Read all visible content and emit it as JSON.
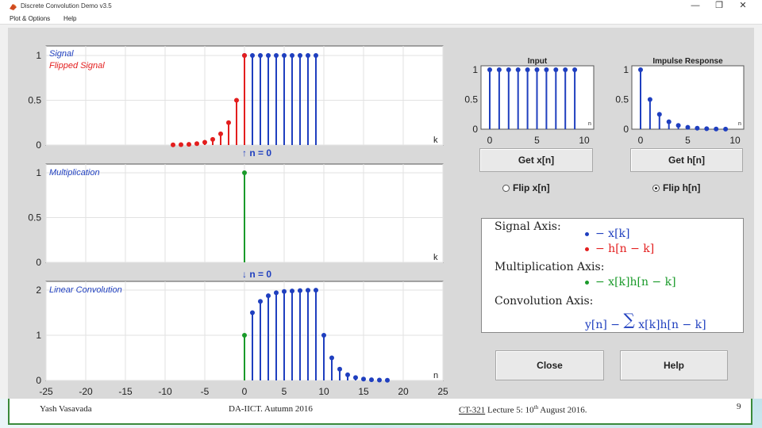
{
  "window": {
    "title": "Discrete Convolution Demo v3.5",
    "menu": [
      "Plot & Options",
      "Help"
    ],
    "controls": [
      "—",
      "❐",
      "✕"
    ]
  },
  "plots": {
    "signal": {
      "legend": [
        "Signal",
        "Flipped Signal"
      ],
      "axis_label": "k",
      "yticks": [
        "1",
        "0.5",
        "0"
      ]
    },
    "multiplication": {
      "legend": [
        "Multiplication"
      ],
      "axis_label": "k",
      "yticks": [
        "1",
        "0.5",
        "0"
      ]
    },
    "convolution": {
      "legend": [
        "Linear Convolution"
      ],
      "axis_label": "n",
      "yticks": [
        "2",
        "1",
        "0"
      ],
      "xticks": [
        "-25",
        "-20",
        "-15",
        "-10",
        "-5",
        "0",
        "5",
        "10",
        "15",
        "20",
        "25"
      ]
    },
    "input": {
      "title": "Input",
      "axis_label": "n",
      "yticks": [
        "1",
        "0.5",
        "0"
      ],
      "xticks": [
        "0",
        "5",
        "10"
      ]
    },
    "impulse": {
      "title": "Impulse Response",
      "axis_label": "n",
      "yticks": [
        "1",
        "0.5",
        "0"
      ],
      "xticks": [
        "0",
        "5",
        "10"
      ]
    }
  },
  "markers": {
    "upper": "↑ n = 0",
    "lower": "↓ n = 0"
  },
  "buttons": {
    "get_x": "Get x[n]",
    "get_h": "Get h[n]",
    "close": "Close",
    "help": "Help"
  },
  "radios": {
    "flip_x": {
      "label": "Flip x[n]",
      "checked": false
    },
    "flip_h": {
      "label": "Flip h[n]",
      "checked": true
    }
  },
  "legend_box": {
    "signal_axis": "Signal Axis:",
    "signal_x": "− x[k]",
    "signal_h": "− h[n − k]",
    "mult_axis": "Multiplication Axis:",
    "mult_term": "− x[k]h[n − k]",
    "conv_axis": "Convolution Axis:",
    "conv_lhs": "y[n] −",
    "conv_sum": "∑",
    "conv_rhs": "x[k]h[n − k]"
  },
  "footer": {
    "author": "Yash Vasavada",
    "course": "DA-IICT. Autumn 2016",
    "course_code": "CT-321",
    "lecture": "Lecture 5: 10",
    "lecture_sup": "th",
    "lecture_date": "August 2016.",
    "page": "9"
  },
  "colors": {
    "blue": "#1f3fbf",
    "red": "#e31e1e",
    "green": "#1a9a2a",
    "footer_border": "#3a8a3a"
  },
  "chart_data": [
    {
      "type": "stem",
      "name": "signal-axis",
      "x_range": [
        -25,
        25
      ],
      "ylim": [
        0,
        1.1
      ],
      "series": [
        {
          "name": "Signal",
          "color": "#1f3fbf",
          "x": [
            0,
            1,
            2,
            3,
            4,
            5,
            6,
            7,
            8,
            9
          ],
          "values": [
            1,
            1,
            1,
            1,
            1,
            1,
            1,
            1,
            1,
            1
          ]
        },
        {
          "name": "Flipped Signal",
          "color": "#e31e1e",
          "x": [
            -9,
            -8,
            -7,
            -6,
            -5,
            -4,
            -3,
            -2,
            -1,
            0
          ],
          "values": [
            0.002,
            0.004,
            0.008,
            0.016,
            0.031,
            0.063,
            0.125,
            0.25,
            0.5,
            1
          ]
        }
      ]
    },
    {
      "type": "stem",
      "name": "multiplication-axis",
      "x_range": [
        -25,
        25
      ],
      "ylim": [
        0,
        1.1
      ],
      "series": [
        {
          "name": "Multiplication",
          "color": "#1a9a2a",
          "x": [
            0
          ],
          "values": [
            1
          ]
        }
      ]
    },
    {
      "type": "stem",
      "name": "convolution-axis",
      "x_range": [
        -25,
        25
      ],
      "ylim": [
        0,
        2.1
      ],
      "series": [
        {
          "name": "Linear Convolution",
          "color": "#1f3fbf",
          "x": [
            1,
            2,
            3,
            4,
            5,
            6,
            7,
            8,
            9,
            10,
            11,
            12,
            13,
            14,
            15,
            16,
            17,
            18
          ],
          "values": [
            1.5,
            1.75,
            1.875,
            1.94,
            1.97,
            1.98,
            1.99,
            1.995,
            1.998,
            1.0,
            0.5,
            0.25,
            0.125,
            0.063,
            0.031,
            0.016,
            0.008,
            0.004
          ]
        },
        {
          "name": "current",
          "color": "#1a9a2a",
          "x": [
            0
          ],
          "values": [
            1
          ]
        }
      ]
    },
    {
      "type": "stem",
      "name": "input",
      "x_range": [
        -1,
        10.5
      ],
      "ylim": [
        0,
        1.1
      ],
      "series": [
        {
          "name": "x[n]",
          "color": "#1f3fbf",
          "x": [
            0,
            1,
            2,
            3,
            4,
            5,
            6,
            7,
            8,
            9
          ],
          "values": [
            1,
            1,
            1,
            1,
            1,
            1,
            1,
            1,
            1,
            1
          ]
        }
      ]
    },
    {
      "type": "stem",
      "name": "impulse-response",
      "x_range": [
        -1,
        10.5
      ],
      "ylim": [
        0,
        1.1
      ],
      "series": [
        {
          "name": "h[n]",
          "color": "#1f3fbf",
          "x": [
            0,
            1,
            2,
            3,
            4,
            5,
            6,
            7,
            8,
            9
          ],
          "values": [
            1,
            0.5,
            0.25,
            0.125,
            0.063,
            0.031,
            0.016,
            0.008,
            0.004,
            0.002
          ]
        }
      ]
    }
  ]
}
